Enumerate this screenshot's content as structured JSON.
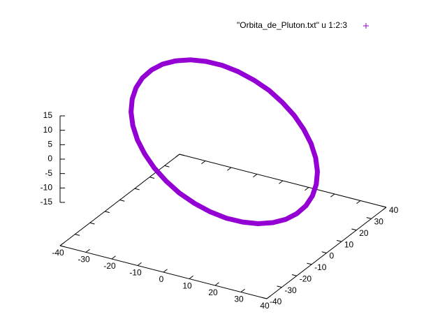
{
  "chart_data": {
    "type": "scatter3d",
    "legend": "top right",
    "xlim": [
      -40,
      40
    ],
    "ylim": [
      -40,
      40
    ],
    "zlim": [
      -15,
      15
    ],
    "ticslevel": 0.5,
    "xticks": [
      -40,
      -30,
      -20,
      -10,
      0,
      10,
      20,
      30,
      40
    ],
    "yticks": [
      -40,
      -30,
      -20,
      -10,
      0,
      10,
      20,
      30,
      40
    ],
    "zticks": [
      -15,
      -10,
      -5,
      0,
      5,
      10,
      15
    ],
    "series": [
      {
        "name": "\"Orbita_de_Pluton.txt\" u 1:2:3",
        "color": "#9400d3",
        "x": [
          -18.3,
          -12.9,
          -7.1,
          -1.1,
          5.1,
          11.0,
          16.7,
          21.9,
          26.5,
          30.3,
          33.2,
          35.1,
          36.0,
          35.9,
          34.6,
          32.4,
          29.2,
          25.1,
          20.3,
          14.9,
          9.1,
          3.1,
          -3.1,
          -9.0,
          -14.7,
          -19.9,
          -24.5,
          -28.3,
          -31.2,
          -33.1,
          -34.0,
          -33.9,
          -32.6,
          -30.4,
          -27.2,
          -23.1
        ],
        "y": [
          20.2,
          21.7,
          22.5,
          22.6,
          22.0,
          20.7,
          18.7,
          16.1,
          13.0,
          9.5,
          5.7,
          1.6,
          -2.5,
          -6.6,
          -10.5,
          -14.1,
          -17.3,
          -20.1,
          -22.2,
          -23.7,
          -24.5,
          -24.6,
          -24.0,
          -22.7,
          -20.7,
          -18.1,
          -15.0,
          -11.5,
          -7.7,
          -3.6,
          0.5,
          4.6,
          8.5,
          12.1,
          15.3,
          18.1
        ],
        "z": [
          15,
          14.3,
          13.1,
          11.5,
          9.6,
          7.3,
          4.9,
          2.3,
          -0.3,
          -3,
          -5.6,
          -8.0,
          -10.1,
          -11.9,
          -13.4,
          -14.5,
          -15.1,
          -15.3,
          -15,
          -14.3,
          -13.1,
          -11.5,
          -9.6,
          -7.3,
          -4.9,
          -2.3,
          0.3,
          3,
          5.6,
          8.0,
          10.1,
          11.9,
          13.4,
          14.5,
          15.1,
          15.3
        ]
      }
    ]
  }
}
